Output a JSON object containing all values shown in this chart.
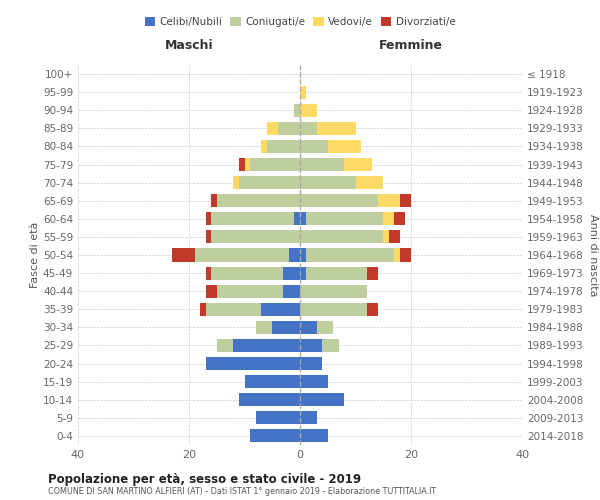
{
  "age_groups": [
    "0-4",
    "5-9",
    "10-14",
    "15-19",
    "20-24",
    "25-29",
    "30-34",
    "35-39",
    "40-44",
    "45-49",
    "50-54",
    "55-59",
    "60-64",
    "65-69",
    "70-74",
    "75-79",
    "80-84",
    "85-89",
    "90-94",
    "95-99",
    "100+"
  ],
  "birth_years": [
    "2014-2018",
    "2009-2013",
    "2004-2008",
    "1999-2003",
    "1994-1998",
    "1989-1993",
    "1984-1988",
    "1979-1983",
    "1974-1978",
    "1969-1973",
    "1964-1968",
    "1959-1963",
    "1954-1958",
    "1949-1953",
    "1944-1948",
    "1939-1943",
    "1934-1938",
    "1929-1933",
    "1924-1928",
    "1919-1923",
    "≤ 1918"
  ],
  "males": {
    "celibi": [
      9,
      8,
      11,
      10,
      17,
      12,
      5,
      7,
      3,
      3,
      2,
      0,
      1,
      0,
      0,
      0,
      0,
      0,
      0,
      0,
      0
    ],
    "coniugati": [
      0,
      0,
      0,
      0,
      0,
      3,
      3,
      10,
      12,
      13,
      17,
      16,
      15,
      15,
      11,
      9,
      6,
      4,
      1,
      0,
      0
    ],
    "vedovi": [
      0,
      0,
      0,
      0,
      0,
      0,
      0,
      0,
      0,
      0,
      0,
      0,
      0,
      0,
      1,
      1,
      1,
      2,
      0,
      0,
      0
    ],
    "divorziati": [
      0,
      0,
      0,
      0,
      0,
      0,
      0,
      1,
      2,
      1,
      4,
      1,
      1,
      1,
      0,
      1,
      0,
      0,
      0,
      0,
      0
    ]
  },
  "females": {
    "nubili": [
      5,
      3,
      8,
      5,
      4,
      4,
      3,
      0,
      0,
      1,
      1,
      0,
      1,
      0,
      0,
      0,
      0,
      0,
      0,
      0,
      0
    ],
    "coniugate": [
      0,
      0,
      0,
      0,
      0,
      3,
      3,
      12,
      12,
      11,
      16,
      15,
      14,
      14,
      10,
      8,
      5,
      3,
      0,
      0,
      0
    ],
    "vedove": [
      0,
      0,
      0,
      0,
      0,
      0,
      0,
      0,
      0,
      0,
      1,
      1,
      2,
      4,
      5,
      5,
      6,
      7,
      3,
      1,
      0
    ],
    "divorziate": [
      0,
      0,
      0,
      0,
      0,
      0,
      0,
      2,
      0,
      2,
      2,
      2,
      2,
      2,
      0,
      0,
      0,
      0,
      0,
      0,
      0
    ]
  },
  "colors": {
    "celibi": "#4472C4",
    "coniugati": "#BFCE9E",
    "vedovi": "#FFD966",
    "divorziati": "#C0392B"
  },
  "xlim": 40,
  "title": "Popolazione per età, sesso e stato civile - 2019",
  "subtitle": "COMUNE DI SAN MARTINO ALFIERI (AT) - Dati ISTAT 1° gennaio 2019 - Elaborazione TUTTITALIA.IT",
  "ylabel_left": "Fasce di età",
  "ylabel_right": "Anni di nascita",
  "header_left": "Maschi",
  "header_right": "Femmine"
}
